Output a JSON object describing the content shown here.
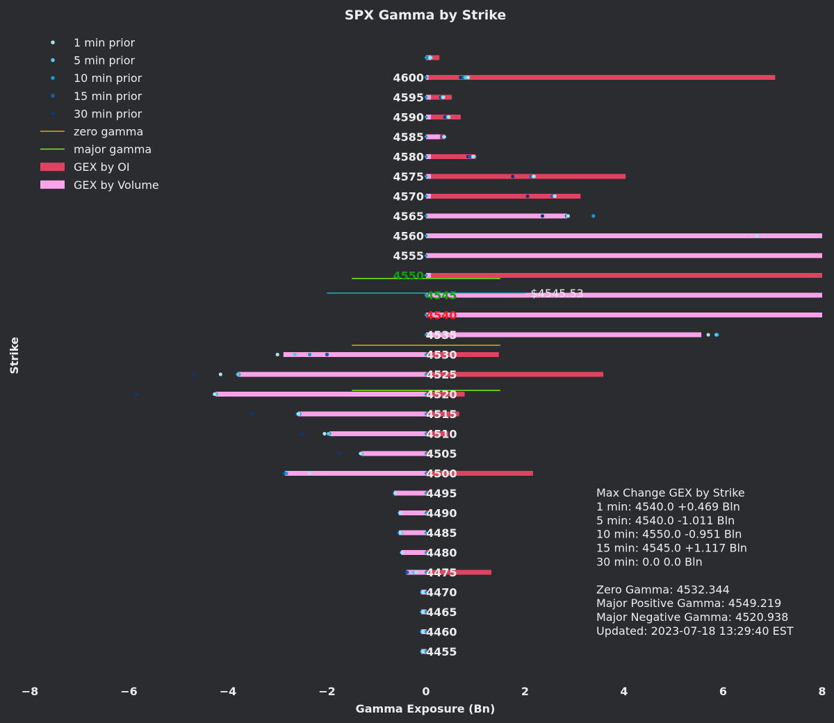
{
  "chart_data": {
    "type": "bar",
    "orientation": "horizontal",
    "title": "SPX Gamma by Strike",
    "xlabel": "Gamma Exposure (Bn)",
    "ylabel": "Strike",
    "xlim": [
      -8,
      8
    ],
    "xticks": [
      "−8",
      "−6",
      "−4",
      "−2",
      "0",
      "2",
      "4",
      "6",
      "8"
    ],
    "grid": false,
    "legend_position": "top-left",
    "legend": [
      {
        "label": "1 min prior",
        "type": "dot",
        "color": "#a6e3e9"
      },
      {
        "label": "5 min prior",
        "type": "dot",
        "color": "#53c8e0"
      },
      {
        "label": "10 min prior",
        "type": "dot",
        "color": "#129cd1"
      },
      {
        "label": "15 min prior",
        "type": "dot",
        "color": "#0e5fae"
      },
      {
        "label": "30 min prior",
        "type": "dot",
        "color": "#0b3678"
      },
      {
        "label": "zero gamma",
        "type": "line",
        "color": "#e2a41e"
      },
      {
        "label": "major gamma",
        "type": "line",
        "color": "#7cf01e"
      },
      {
        "label": "GEX by OI",
        "type": "bar",
        "color": "#e0435f"
      },
      {
        "label": "GEX by Volume",
        "type": "bar",
        "color": "#f9a4e8"
      }
    ],
    "colors": {
      "oi": "#e0435f",
      "volume": "#f9a4e8",
      "zero_gamma": "#e2a41e",
      "major_gamma": "#7cf01e",
      "spot_line": "#1fb7c4",
      "positive_strike": "#139c13",
      "negative_strike": "#ff1a1a",
      "normal_strike": "#ececec"
    },
    "strikes": [
      {
        "strike": 4605,
        "label": "",
        "oi": 0.27,
        "vol": 0.1,
        "p1": 0.08,
        "p5": 0.1,
        "p10": 0.06,
        "p15": 0.04,
        "p30": 0.02
      },
      {
        "strike": 4600,
        "label": "4600",
        "oi": 7.05,
        "vol": 0.05,
        "p1": 0.85,
        "p5": 0.8,
        "p10": 0.78,
        "p15": 0.75,
        "p30": 0.7
      },
      {
        "strike": 4595,
        "label": "4595",
        "oi": 0.52,
        "vol": 0.1,
        "p1": 0.35,
        "p5": 0.34,
        "p10": 0.33,
        "p15": 0.32,
        "p30": 0.3
      },
      {
        "strike": 4590,
        "label": "4590",
        "oi": 0.7,
        "vol": 0.1,
        "p1": 0.46,
        "p5": 0.45,
        "p10": 0.44,
        "p15": 0.42,
        "p30": 0.38
      },
      {
        "strike": 4585,
        "label": "4585",
        "oi": 0.38,
        "vol": 0.28,
        "p1": 0.37,
        "p5": 0.36,
        "p10": 0.35,
        "p15": 0.34,
        "p30": 0.33
      },
      {
        "strike": 4580,
        "label": "4580",
        "oi": 1.0,
        "vol": 0.1,
        "p1": 0.95,
        "p5": 0.97,
        "p10": 0.98,
        "p15": 0.88,
        "p30": 0.85
      },
      {
        "strike": 4575,
        "label": "4575",
        "oi": 4.03,
        "vol": 0.1,
        "p1": 2.18,
        "p5": 2.17,
        "p10": 2.15,
        "p15": 2.12,
        "p30": 1.75
      },
      {
        "strike": 4570,
        "label": "4570",
        "oi": 3.12,
        "vol": 0.1,
        "p1": 2.6,
        "p5": 2.6,
        "p10": 2.58,
        "p15": 2.55,
        "p30": 2.05
      },
      {
        "strike": 4565,
        "label": "4565",
        "oi": 1.41,
        "vol": 2.85,
        "p1": 2.87,
        "p5": 2.86,
        "p10": 3.38,
        "p15": 2.84,
        "p30": 2.35
      },
      {
        "strike": 4560,
        "label": "4560",
        "oi": 3.09,
        "vol": 8.0,
        "p1": 6.68,
        "p5": 6.68,
        "p10": 6.68,
        "p15": 6.68,
        "p30": 6.68
      },
      {
        "strike": 4555,
        "label": "4555",
        "oi": 2.2,
        "vol": 8.0,
        "p1": 8.2,
        "p5": 8.2,
        "p10": 8.2,
        "p15": 8.2,
        "p30": 8.2
      },
      {
        "strike": 4550,
        "label": "4550",
        "oi": 8.0,
        "vol": 0.1,
        "p1": 8.2,
        "p5": 8.2,
        "p10": 8.2,
        "p15": 8.2,
        "p30": 8.2
      },
      {
        "strike": 4545,
        "label": "4545",
        "oi": 4.06,
        "vol": 8.0,
        "p1": 8.2,
        "p5": 8.2,
        "p10": 8.2,
        "p15": 8.2,
        "p30": 8.2
      },
      {
        "strike": 4540,
        "label": "4540",
        "oi": 4.22,
        "vol": 8.0,
        "p1": 8.2,
        "p5": 8.2,
        "p10": 8.2,
        "p15": 8.2,
        "p30": 8.2
      },
      {
        "strike": 4535,
        "label": "4535",
        "oi": 2.87,
        "vol": 5.56,
        "p1": 5.7,
        "p5": 5.86,
        "p10": 5.88,
        "p15": 5.88,
        "p30": 5.88
      },
      {
        "strike": 4530,
        "label": "4530",
        "oi": 1.47,
        "vol": -2.88,
        "p1": -3.0,
        "p5": -2.65,
        "p10": -2.35,
        "p15": -2.0,
        "p30": -2.0
      },
      {
        "strike": 4525,
        "label": "4525",
        "oi": 3.58,
        "vol": -3.8,
        "p1": -4.15,
        "p5": -3.8,
        "p10": -3.78,
        "p15": -3.8,
        "p30": -4.68
      },
      {
        "strike": 4520,
        "label": "4520",
        "oi": 0.78,
        "vol": -4.25,
        "p1": -4.27,
        "p5": -4.25,
        "p10": -4.24,
        "p15": -4.27,
        "p30": -5.85
      },
      {
        "strike": 4515,
        "label": "4515",
        "oi": 0.67,
        "vol": -2.58,
        "p1": -2.58,
        "p5": -2.57,
        "p10": -2.55,
        "p15": -2.6,
        "p30": -3.52
      },
      {
        "strike": 4510,
        "label": "4510",
        "oi": 0.45,
        "vol": -1.95,
        "p1": -2.05,
        "p5": -1.97,
        "p10": -1.95,
        "p15": -1.97,
        "p30": -2.5
      },
      {
        "strike": 4505,
        "label": "4505",
        "oi": 0.1,
        "vol": -1.3,
        "p1": -1.32,
        "p5": -1.31,
        "p10": -1.3,
        "p15": -1.32,
        "p30": -1.75
      },
      {
        "strike": 4500,
        "label": "4500",
        "oi": 2.16,
        "vol": -2.85,
        "p1": -2.35,
        "p5": -2.35,
        "p10": -2.82,
        "p15": -2.85,
        "p30": -2.88
      },
      {
        "strike": 4495,
        "label": "4495",
        "oi": 0.05,
        "vol": -0.65,
        "p1": -0.62,
        "p5": -0.62,
        "p10": -0.63,
        "p15": -0.63,
        "p30": -0.65
      },
      {
        "strike": 4490,
        "label": "4490",
        "oi": 0.05,
        "vol": -0.55,
        "p1": -0.52,
        "p5": -0.52,
        "p10": -0.53,
        "p15": -0.54,
        "p30": -0.55
      },
      {
        "strike": 4485,
        "label": "4485",
        "oi": -0.15,
        "vol": -0.55,
        "p1": -0.52,
        "p5": -0.5,
        "p10": -0.52,
        "p15": -0.55,
        "p30": -0.56
      },
      {
        "strike": 4480,
        "label": "4480",
        "oi": 0.05,
        "vol": -0.5,
        "p1": -0.48,
        "p5": -0.48,
        "p10": -0.49,
        "p15": -0.5,
        "p30": -0.5
      },
      {
        "strike": 4475,
        "label": "4475",
        "oi": 1.32,
        "vol": -0.4,
        "p1": -0.2,
        "p5": -0.25,
        "p10": -0.25,
        "p15": -0.38,
        "p30": -0.4
      },
      {
        "strike": 4470,
        "label": "4470",
        "oi": 0.02,
        "vol": -0.1,
        "p1": -0.06,
        "p5": -0.07,
        "p10": -0.08,
        "p15": -0.09,
        "p30": -0.1
      },
      {
        "strike": 4465,
        "label": "4465",
        "oi": 0.02,
        "vol": -0.1,
        "p1": -0.06,
        "p5": -0.07,
        "p10": -0.08,
        "p15": -0.09,
        "p30": -0.1
      },
      {
        "strike": 4460,
        "label": "4460",
        "oi": 0.02,
        "vol": -0.1,
        "p1": -0.06,
        "p5": -0.07,
        "p10": -0.08,
        "p15": -0.09,
        "p30": -0.1
      },
      {
        "strike": 4455,
        "label": "4455",
        "oi": 0.02,
        "vol": -0.1,
        "p1": -0.06,
        "p5": -0.07,
        "p10": -0.08,
        "p15": -0.09,
        "p30": -0.1
      }
    ],
    "strike_label_color": {
      "4550": "positive",
      "4545": "positive",
      "4540": "negative"
    },
    "reference_lines": [
      {
        "name": "major positive gamma",
        "strike": 4549.219,
        "x": [
          -1.5,
          1.5
        ],
        "color": "#7cf01e"
      },
      {
        "name": "spot price",
        "strike": 4545.53,
        "x": [
          -2.0,
          2.0
        ],
        "color": "#1fb7c4",
        "label": "$4545.53"
      },
      {
        "name": "zero gamma",
        "strike": 4532.344,
        "x": [
          -1.5,
          1.5
        ],
        "color": "#e2a41e"
      },
      {
        "name": "major negative gamma",
        "strike": 4520.938,
        "x": [
          -1.5,
          1.5
        ],
        "color": "#7cf01e"
      }
    ],
    "annotation_lines": [
      "Max Change GEX by Strike",
      "1 min:   4540.0 +0.469 Bln",
      "5 min:   4540.0 -1.011 Bln",
      "10 min: 4550.0 -0.951 Bln",
      "15 min: 4545.0 +1.117 Bln",
      "30 min: 0.0 0.0 Bln",
      "",
      "Zero Gamma: 4532.344",
      "Major Positive Gamma: 4549.219",
      "Major Negative Gamma: 4520.938",
      "Updated: 2023-07-18 13:29:40 EST"
    ]
  }
}
